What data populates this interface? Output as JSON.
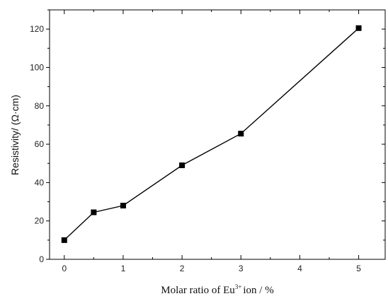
{
  "chart_data": {
    "type": "line",
    "title": "",
    "xlabel": {
      "before": "Molar ratio of Eu",
      "superscript": "3+",
      "after": "ion / %"
    },
    "ylabel": "Resistivity/ (Ω·cm)",
    "xlim": [
      -0.25,
      5.45
    ],
    "ylim": [
      0,
      130
    ],
    "x_ticks": [
      0,
      1,
      2,
      3,
      4,
      5
    ],
    "x_tick_labels": [
      "0",
      "1",
      "2",
      "3",
      "4",
      "5"
    ],
    "x_minor_ticks": [
      0.5,
      1.5,
      2.5,
      3.5,
      4.5
    ],
    "y_ticks": [
      0,
      20,
      40,
      60,
      80,
      100,
      120
    ],
    "y_tick_labels": [
      "0",
      "20",
      "40",
      "60",
      "80",
      "100",
      "120"
    ],
    "y_minor_ticks": [
      10,
      30,
      50,
      70,
      90,
      110,
      130
    ],
    "grid": false,
    "series": [
      {
        "marker": "square",
        "color": "#000000",
        "x": [
          0,
          0.5,
          1,
          2,
          3,
          5
        ],
        "y": [
          10,
          24.5,
          28,
          49,
          65.5,
          120.5
        ]
      }
    ]
  }
}
